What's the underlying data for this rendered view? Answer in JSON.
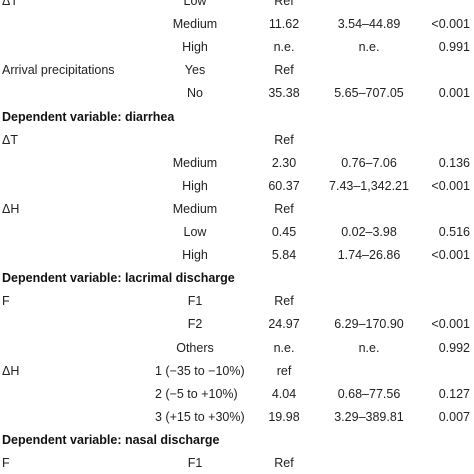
{
  "rows": [
    {
      "type": "data",
      "label": "ΔT",
      "level": "Low",
      "or": "Ref",
      "ci": "",
      "p": ""
    },
    {
      "type": "data",
      "label": "",
      "level": "Medium",
      "or": "11.62",
      "ci": "3.54–44.89",
      "p": "<0.001"
    },
    {
      "type": "data",
      "label": "",
      "level": "High",
      "or": "n.e.",
      "ci": "n.e.",
      "p": "0.991"
    },
    {
      "type": "data",
      "label": "Arrival precipitations",
      "level": "Yes",
      "or": "Ref",
      "ci": "",
      "p": ""
    },
    {
      "type": "data",
      "label": "",
      "level": "No",
      "or": "35.38",
      "ci": "5.65–707.05",
      "p": "0.001"
    },
    {
      "type": "header",
      "text": "Dependent variable: diarrhea"
    },
    {
      "type": "data",
      "label": "ΔT",
      "level": "",
      "or": "Ref",
      "ci": "",
      "p": ""
    },
    {
      "type": "data",
      "label": "",
      "level": "Medium",
      "or": "2.30",
      "ci": "0.76–7.06",
      "p": "0.136"
    },
    {
      "type": "data",
      "label": "",
      "level": "High",
      "or": "60.37",
      "ci": "7.43–1,342.21",
      "p": "<0.001"
    },
    {
      "type": "data",
      "label": "ΔH",
      "level": "Medium",
      "or": "Ref",
      "ci": "",
      "p": ""
    },
    {
      "type": "data",
      "label": "",
      "level": "Low",
      "or": "0.45",
      "ci": "0.02–3.98",
      "p": "0.516"
    },
    {
      "type": "data",
      "label": "",
      "level": "High",
      "or": "5.84",
      "ci": "1.74–26.86",
      "p": "<0.001"
    },
    {
      "type": "header",
      "text": "Dependent variable: lacrimal discharge"
    },
    {
      "type": "data",
      "label": "F",
      "level": "F1",
      "or": "Ref",
      "ci": "",
      "p": ""
    },
    {
      "type": "data",
      "label": "",
      "level": "F2",
      "or": "24.97",
      "ci": "6.29–170.90",
      "p": "<0.001"
    },
    {
      "type": "data",
      "label": "",
      "level": "Others",
      "or": "n.e.",
      "ci": "n.e.",
      "p": "0.992"
    },
    {
      "type": "data",
      "label": "ΔH",
      "level": "1 (−35 to −10%)",
      "or": "ref",
      "ci": "",
      "p": ""
    },
    {
      "type": "data",
      "label": "",
      "level": "2 (−5 to +10%)",
      "or": "4.04",
      "ci": "0.68–77.56",
      "p": "0.127"
    },
    {
      "type": "data",
      "label": "",
      "level": "3 (+15 to +30%)",
      "or": "19.98",
      "ci": "3.29–389.81",
      "p": "0.007"
    },
    {
      "type": "header",
      "text": "Dependent variable: nasal discharge"
    },
    {
      "type": "data",
      "label": "F",
      "level": "F1",
      "or": "Ref",
      "ci": "",
      "p": ""
    }
  ]
}
